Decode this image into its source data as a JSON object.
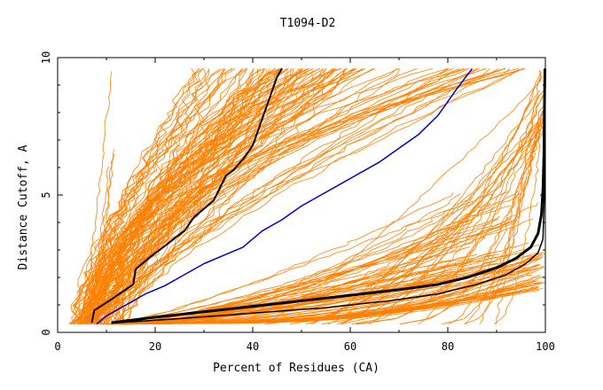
{
  "chart_data": {
    "type": "line",
    "title": "T1094-D2",
    "xlabel": "Percent of Residues (CA)",
    "ylabel": "Distance Cutoff, A",
    "xlim": [
      0,
      100
    ],
    "ylim": [
      0,
      10
    ],
    "xticks": [
      0,
      20,
      40,
      60,
      80,
      100
    ],
    "yticks": [
      0,
      5,
      10
    ],
    "grid": false,
    "legend": "none",
    "colors": {
      "models": "#ff8000",
      "highlight_black": "#000000",
      "highlight_blue": "#0000cc",
      "axes": "#000000"
    },
    "series": [
      {
        "color": "#000000",
        "width": 2,
        "x": [
          7,
          7.5,
          11,
          15.5,
          16,
          19,
          22,
          26,
          28,
          32,
          34.5,
          36,
          38,
          40,
          41,
          42,
          43,
          44,
          45,
          46
        ],
        "y": [
          0.35,
          0.8,
          1.2,
          1.75,
          2.3,
          2.75,
          3.15,
          3.7,
          4.2,
          4.8,
          5.7,
          5.9,
          6.3,
          6.8,
          7.3,
          7.8,
          8.3,
          8.8,
          9.3,
          9.6
        ]
      },
      {
        "color": "#0000cc",
        "width": 1.5,
        "x": [
          8,
          10,
          14,
          18,
          22,
          26,
          30,
          34,
          38,
          40,
          42,
          46,
          50,
          55,
          60,
          66,
          70,
          74,
          78,
          82,
          85
        ],
        "y": [
          0.3,
          0.6,
          1.0,
          1.4,
          1.7,
          2.1,
          2.5,
          2.8,
          3.1,
          3.4,
          3.7,
          4.1,
          4.6,
          5.1,
          5.6,
          6.2,
          6.7,
          7.2,
          7.9,
          8.9,
          9.6
        ]
      },
      {
        "color": "#000000",
        "width": 3,
        "x": [
          11,
          20,
          30,
          40,
          50,
          60,
          70,
          78,
          84,
          90,
          94,
          97,
          98.5,
          99.2,
          99.5,
          99.7,
          99.8,
          99.9
        ],
        "y": [
          0.35,
          0.55,
          0.75,
          0.95,
          1.15,
          1.35,
          1.55,
          1.75,
          2.0,
          2.35,
          2.7,
          3.1,
          3.6,
          4.3,
          5.2,
          6.5,
          8.0,
          9.6
        ]
      },
      {
        "color": "#000000",
        "width": 1.5,
        "x": [
          12,
          25,
          40,
          55,
          68,
          78,
          86,
          92,
          96,
          98.5,
          99.5,
          99.8,
          99.9
        ],
        "y": [
          0.35,
          0.5,
          0.7,
          0.9,
          1.15,
          1.4,
          1.75,
          2.1,
          2.5,
          2.9,
          3.4,
          5.0,
          9.6
        ]
      }
    ]
  }
}
